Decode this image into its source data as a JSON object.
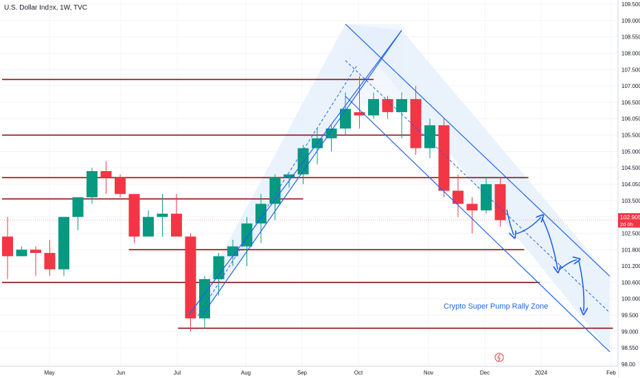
{
  "title": "U.S. Dollar Index, 1W, TVC",
  "chart_data": {
    "type": "candlestick",
    "title": "U.S. Dollar Index, 1W, TVC",
    "ylim": [
      98.5,
      109.5
    ],
    "y_ticks": [
      "109.500",
      "109.000",
      "108.550",
      "108.000",
      "107.500",
      "107.000",
      "106.500",
      "106.050",
      "105.500",
      "105.000",
      "104.500",
      "104.050",
      "103.500",
      "103.000",
      "102.500",
      "101.800",
      "101.200",
      "100.600",
      "100.000",
      "99.500",
      "99.000",
      "98.550",
      "98.00"
    ],
    "x_ticks": [
      "May",
      "Jun",
      "Jul",
      "Aug",
      "Sep",
      "Oct",
      "Nov",
      "Dec",
      "2024",
      "Feb"
    ],
    "colors": {
      "up": "#089981",
      "down": "#f23645",
      "line": "#1e63e9",
      "level": "#8b0d0d",
      "channel_fill": "#e6f0fc"
    },
    "candles": [
      {
        "o": 102.4,
        "h": 103.0,
        "l": 101.1,
        "c": 101.8
      },
      {
        "o": 101.8,
        "h": 102.1,
        "l": 101.8,
        "c": 102.0
      },
      {
        "o": 102.0,
        "h": 102.1,
        "l": 101.2,
        "c": 101.9
      },
      {
        "o": 101.9,
        "h": 102.3,
        "l": 101.2,
        "c": 101.4
      },
      {
        "o": 101.4,
        "h": 102.9,
        "l": 101.2,
        "c": 103.0
      },
      {
        "o": 103.0,
        "h": 103.5,
        "l": 102.6,
        "c": 103.6
      },
      {
        "o": 103.6,
        "h": 104.5,
        "l": 103.4,
        "c": 104.4
      },
      {
        "o": 104.4,
        "h": 104.7,
        "l": 103.7,
        "c": 104.2
      },
      {
        "o": 104.2,
        "h": 104.3,
        "l": 103.6,
        "c": 103.7
      },
      {
        "o": 103.7,
        "h": 103.7,
        "l": 102.2,
        "c": 102.4
      },
      {
        "o": 102.4,
        "h": 103.2,
        "l": 102.4,
        "c": 103.0
      },
      {
        "o": 103.0,
        "h": 103.7,
        "l": 102.4,
        "c": 103.1
      },
      {
        "o": 103.1,
        "h": 103.7,
        "l": 102.5,
        "c": 102.4
      },
      {
        "o": 102.4,
        "h": 102.5,
        "l": 99.5,
        "c": 99.9
      },
      {
        "o": 99.9,
        "h": 101.2,
        "l": 99.6,
        "c": 101.1
      },
      {
        "o": 101.1,
        "h": 101.9,
        "l": 100.6,
        "c": 101.8
      },
      {
        "o": 101.8,
        "h": 102.3,
        "l": 101.5,
        "c": 102.1
      },
      {
        "o": 102.1,
        "h": 103.0,
        "l": 101.5,
        "c": 102.8
      },
      {
        "o": 102.8,
        "h": 103.7,
        "l": 102.2,
        "c": 103.4
      },
      {
        "o": 103.4,
        "h": 104.3,
        "l": 102.9,
        "c": 104.2
      },
      {
        "o": 104.2,
        "h": 104.3,
        "l": 103.9,
        "c": 104.3
      },
      {
        "o": 104.3,
        "h": 105.2,
        "l": 104.0,
        "c": 105.1
      },
      {
        "o": 105.1,
        "h": 105.7,
        "l": 104.6,
        "c": 105.4
      },
      {
        "o": 105.4,
        "h": 105.8,
        "l": 105.0,
        "c": 105.7
      },
      {
        "o": 105.7,
        "h": 106.8,
        "l": 105.5,
        "c": 106.3
      },
      {
        "o": 106.2,
        "h": 107.3,
        "l": 105.7,
        "c": 106.1
      },
      {
        "o": 106.1,
        "h": 106.8,
        "l": 106.0,
        "c": 106.6
      },
      {
        "o": 106.6,
        "h": 106.7,
        "l": 106.0,
        "c": 106.2
      },
      {
        "o": 106.2,
        "h": 106.8,
        "l": 105.4,
        "c": 106.6
      },
      {
        "o": 106.6,
        "h": 107.0,
        "l": 104.9,
        "c": 105.1
      },
      {
        "o": 105.1,
        "h": 106.0,
        "l": 104.8,
        "c": 105.8
      },
      {
        "o": 105.8,
        "h": 106.0,
        "l": 103.6,
        "c": 103.8
      },
      {
        "o": 103.8,
        "h": 104.3,
        "l": 103.0,
        "c": 103.4
      },
      {
        "o": 103.4,
        "h": 103.6,
        "l": 102.5,
        "c": 103.2
      },
      {
        "o": 103.2,
        "h": 104.2,
        "l": 103.1,
        "c": 104.0
      },
      {
        "o": 104.0,
        "h": 104.2,
        "l": 102.7,
        "c": 102.9
      }
    ],
    "horizontal_levels": [
      {
        "y": 107.2,
        "x0": 0,
        "x1": 26
      },
      {
        "y": 105.5,
        "x0": 0,
        "x1": 31
      },
      {
        "y": 104.2,
        "x0": 0,
        "x1": 37
      },
      {
        "y": 103.55,
        "x0": 0,
        "x1": 21
      },
      {
        "y": 102.0,
        "x0": 9,
        "x1": 36.7
      },
      {
        "y": 101.0,
        "x0": 0,
        "x1": 37.8
      },
      {
        "y": 99.6,
        "x0": 12.5,
        "x1": 43
      }
    ],
    "current_price": "102.905",
    "countdown": "2d 0h",
    "annotation": "Crypto Super Pump Rally Zone"
  }
}
